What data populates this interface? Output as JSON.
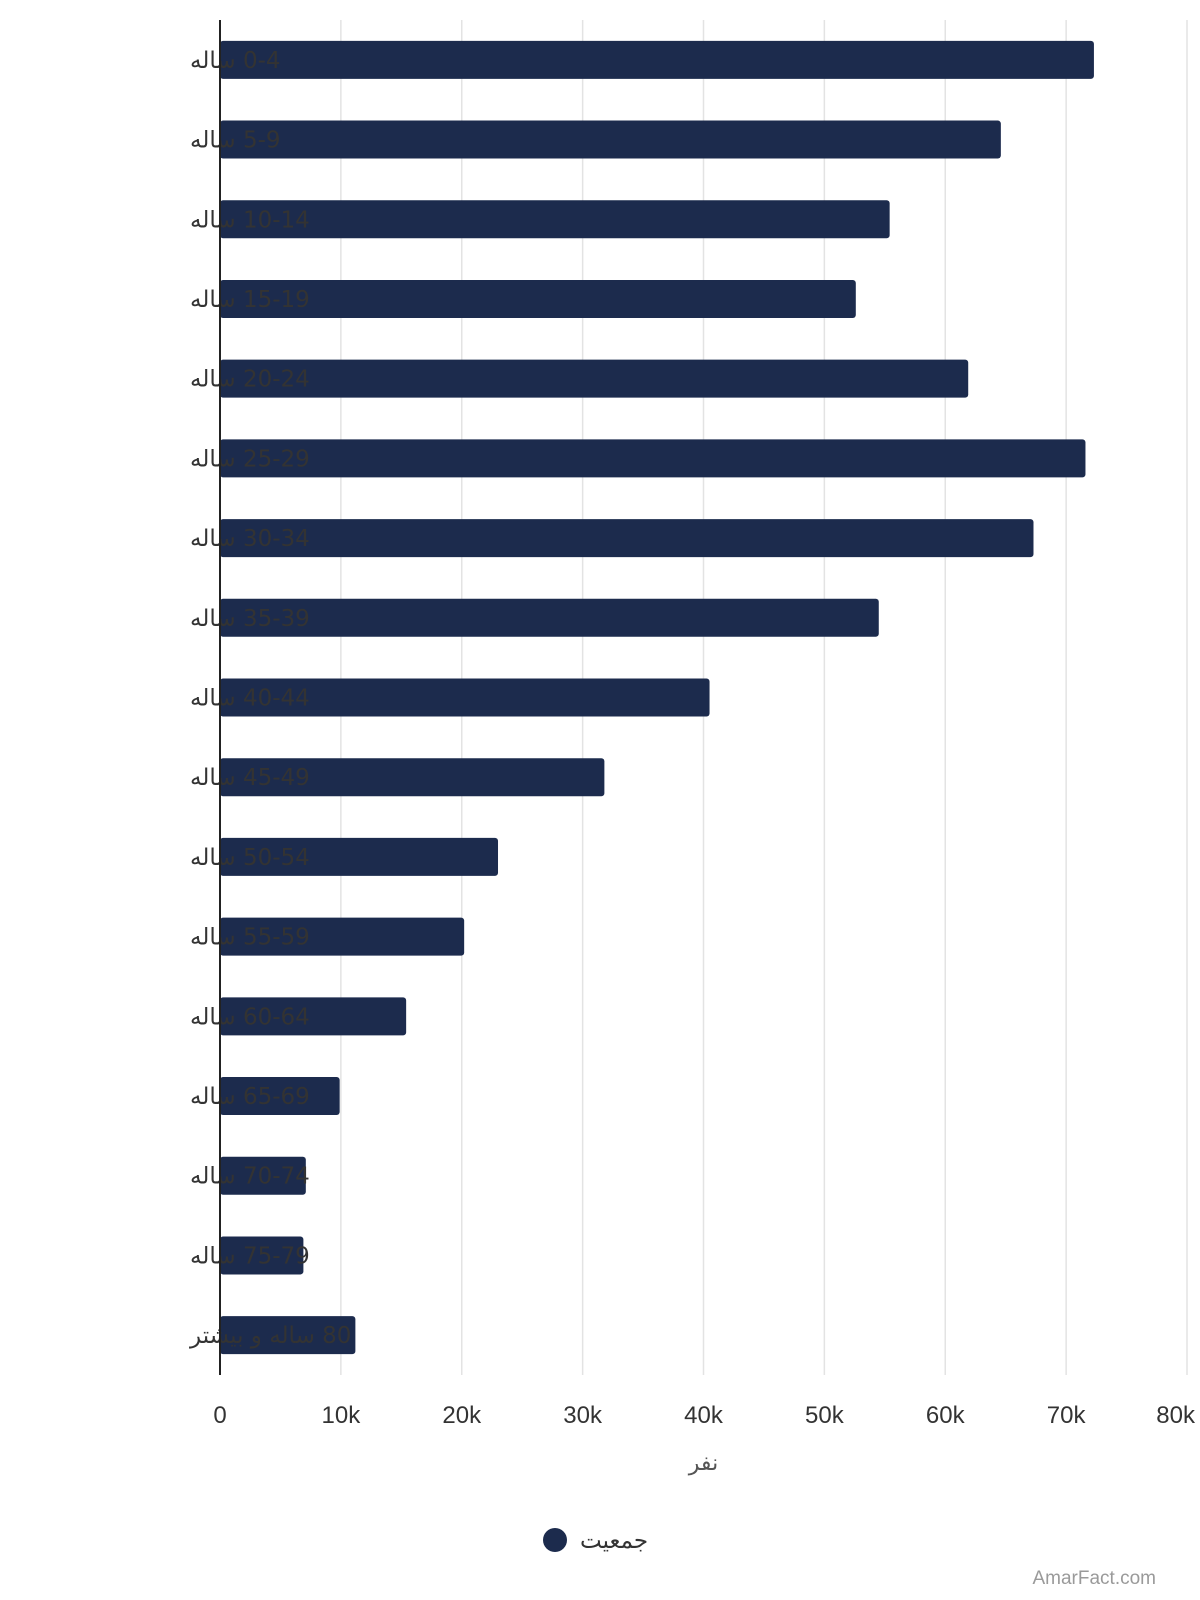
{
  "chart_data": {
    "type": "bar",
    "orientation": "horizontal",
    "categories": [
      "0-4 ساله",
      "5-9 ساله",
      "10-14 ساله",
      "15-19 ساله",
      "20-24 ساله",
      "25-29 ساله",
      "30-34 ساله",
      "35-39 ساله",
      "40-44 ساله",
      "45-49 ساله",
      "50-54 ساله",
      "55-59 ساله",
      "60-64 ساله",
      "65-69 ساله",
      "70-74 ساله",
      "75-79 ساله",
      "80 ساله و بیشتر"
    ],
    "series": [
      {
        "name": "جمعیت",
        "color": "#1c2b4d",
        "values": [
          72300,
          64600,
          55400,
          52600,
          61900,
          71600,
          67300,
          54500,
          40500,
          31800,
          23000,
          20200,
          15400,
          9900,
          7100,
          6900,
          11200
        ]
      }
    ],
    "xlabel": "نفر",
    "xlim": [
      0,
      80000
    ],
    "xticks": [
      0,
      10000,
      20000,
      30000,
      40000,
      50000,
      60000,
      70000,
      80000
    ],
    "xtick_labels": [
      "0",
      "10k",
      "20k",
      "30k",
      "40k",
      "50k",
      "60k",
      "70k",
      "80k"
    ],
    "grid": true,
    "legend_position": "bottom"
  },
  "watermark": "AmarFact.com"
}
